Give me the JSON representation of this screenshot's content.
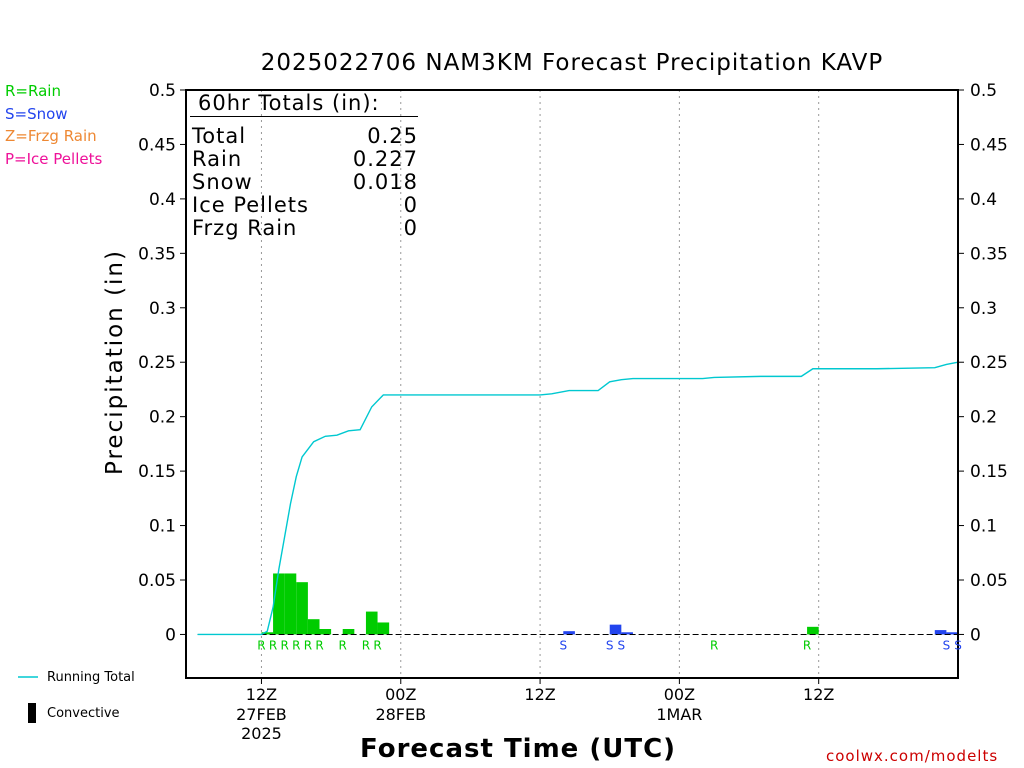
{
  "chart_data": {
    "type": "bar",
    "title": "2025022706 NAM3KM Forecast Precipitation KAVP",
    "xlabel": "Forecast Time (UTC)",
    "ylabel": "Precipitation (in)",
    "ylim": [
      -0.04,
      0.5
    ],
    "xlim_hours": [
      -6.5,
      60
    ],
    "yticks": [
      0,
      0.05,
      0.1,
      0.15,
      0.2,
      0.25,
      0.3,
      0.35,
      0.4,
      0.45,
      0.5
    ],
    "ytick_labels": [
      "0",
      "0.05",
      "0.1",
      "0.15",
      "0.2",
      "0.25",
      "0.3",
      "0.35",
      "0.4",
      "0.45",
      "0.5"
    ],
    "xticks": [
      {
        "hour": 0,
        "label": "12Z",
        "sub": [
          "27FEB",
          "2025"
        ]
      },
      {
        "hour": 12,
        "label": "00Z",
        "sub": [
          "28FEB"
        ]
      },
      {
        "hour": 24,
        "label": "12Z",
        "sub": []
      },
      {
        "hour": 36,
        "label": "00Z",
        "sub": [
          "1MAR"
        ]
      },
      {
        "hour": 48,
        "label": "12Z",
        "sub": []
      }
    ],
    "grid": "vertical dotted at xticks",
    "legend_types": [
      {
        "code": "R",
        "text": "R=Rain",
        "color": "#00cc00"
      },
      {
        "code": "S",
        "text": "S=Snow",
        "color": "#2244ee"
      },
      {
        "code": "Z",
        "text": "Z=Frzg Rain",
        "color": "#ee8833"
      },
      {
        "code": "P",
        "text": "P=Ice Pellets",
        "color": "#ee1199"
      }
    ],
    "hourly_precip": [
      {
        "hour": 0.5,
        "value": 0.002,
        "type": "R"
      },
      {
        "hour": 1.5,
        "value": 0.056,
        "type": "R"
      },
      {
        "hour": 2.5,
        "value": 0.056,
        "type": "R"
      },
      {
        "hour": 3.5,
        "value": 0.048,
        "type": "R"
      },
      {
        "hour": 4.5,
        "value": 0.014,
        "type": "R"
      },
      {
        "hour": 5.5,
        "value": 0.005,
        "type": "R"
      },
      {
        "hour": 7.5,
        "value": 0.005,
        "type": "R"
      },
      {
        "hour": 9.5,
        "value": 0.021,
        "type": "R"
      },
      {
        "hour": 10.5,
        "value": 0.011,
        "type": "R"
      },
      {
        "hour": 26.5,
        "value": 0.003,
        "type": "S"
      },
      {
        "hour": 30.5,
        "value": 0.009,
        "type": "S"
      },
      {
        "hour": 31.5,
        "value": 0.002,
        "type": "S"
      },
      {
        "hour": 47.5,
        "value": 0.007,
        "type": "R"
      },
      {
        "hour": 58.5,
        "value": 0.004,
        "type": "S"
      },
      {
        "hour": 59.5,
        "value": 0.002,
        "type": "S"
      }
    ],
    "type_marks": [
      {
        "hour": 0,
        "code": "R"
      },
      {
        "hour": 1,
        "code": "R"
      },
      {
        "hour": 2,
        "code": "R"
      },
      {
        "hour": 3,
        "code": "R"
      },
      {
        "hour": 4,
        "code": "R"
      },
      {
        "hour": 5,
        "code": "R"
      },
      {
        "hour": 7,
        "code": "R"
      },
      {
        "hour": 9,
        "code": "R"
      },
      {
        "hour": 10,
        "code": "R"
      },
      {
        "hour": 26,
        "code": "S"
      },
      {
        "hour": 30,
        "code": "S"
      },
      {
        "hour": 31,
        "code": "S"
      },
      {
        "hour": 39,
        "code": "R"
      },
      {
        "hour": 47,
        "code": "R"
      },
      {
        "hour": 59,
        "code": "S"
      },
      {
        "hour": 60,
        "code": "S"
      }
    ],
    "running_total": [
      [
        -5.5,
        0
      ],
      [
        0,
        0
      ],
      [
        0.5,
        0.003
      ],
      [
        1,
        0.025
      ],
      [
        1.5,
        0.06
      ],
      [
        2,
        0.09
      ],
      [
        2.5,
        0.12
      ],
      [
        3,
        0.145
      ],
      [
        3.5,
        0.163
      ],
      [
        4.5,
        0.177
      ],
      [
        5.5,
        0.182
      ],
      [
        6.5,
        0.183
      ],
      [
        7.5,
        0.187
      ],
      [
        8.5,
        0.188
      ],
      [
        9.5,
        0.209
      ],
      [
        10.5,
        0.22
      ],
      [
        24,
        0.22
      ],
      [
        25,
        0.221
      ],
      [
        26.5,
        0.224
      ],
      [
        29,
        0.224
      ],
      [
        30,
        0.232
      ],
      [
        31,
        0.234
      ],
      [
        32,
        0.235
      ],
      [
        38,
        0.235
      ],
      [
        39,
        0.236
      ],
      [
        43,
        0.237
      ],
      [
        46.5,
        0.237
      ],
      [
        47.5,
        0.244
      ],
      [
        53,
        0.244
      ],
      [
        58,
        0.245
      ],
      [
        59,
        0.248
      ],
      [
        60,
        0.25
      ]
    ],
    "running_total_color": "#00c8d0",
    "convective_color": "#000000"
  },
  "totals_box": {
    "title": "60hr Totals (in):",
    "rows": [
      {
        "label": "Total",
        "value": "0.25"
      },
      {
        "label": "Rain",
        "value": "0.227"
      },
      {
        "label": "Snow",
        "value": "0.018"
      },
      {
        "label": "Ice Pellets",
        "value": "0"
      },
      {
        "label": "Frzg Rain",
        "value": "0"
      }
    ]
  },
  "bottom_legend": {
    "running_total_label": "Running Total",
    "convective_label": "Convective"
  },
  "credit": "coolwx.com/modelts"
}
